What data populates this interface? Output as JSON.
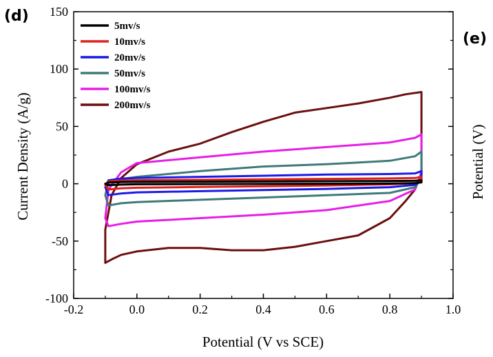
{
  "chart_data": [
    {
      "panel_label": "(d)",
      "type": "line",
      "xlabel": "Potential (V vs SCE)",
      "ylabel": "Current Density (A/g)",
      "xlim": [
        -0.2,
        1.0
      ],
      "ylim": [
        -100,
        150
      ],
      "xticks": [
        "-0.2",
        "0.0",
        "0.2",
        "0.4",
        "0.6",
        "0.8",
        "1.0"
      ],
      "yticks": [
        "-100",
        "-50",
        "0",
        "50",
        "100",
        "150"
      ],
      "grid": false,
      "legend_position": "top-left",
      "series": [
        {
          "name": "5mv/s",
          "color": "#000000",
          "x": [
            -0.1,
            -0.09,
            -0.05,
            0.0,
            0.2,
            0.4,
            0.6,
            0.8,
            0.88,
            0.9,
            0.9,
            0.88,
            0.8,
            0.6,
            0.4,
            0.2,
            0.0,
            -0.05,
            -0.09,
            -0.1
          ],
          "y": [
            0,
            1.0,
            1.5,
            1.6,
            1.8,
            2.0,
            2.2,
            2.4,
            2.6,
            3.0,
            1.2,
            0.5,
            0.2,
            0.0,
            -0.2,
            -0.3,
            -0.5,
            -0.8,
            -1.2,
            0
          ]
        },
        {
          "name": "10mv/s",
          "color": "#e0201b",
          "x": [
            -0.1,
            -0.09,
            -0.05,
            0.0,
            0.2,
            0.4,
            0.6,
            0.8,
            0.88,
            0.9,
            0.9,
            0.88,
            0.8,
            0.6,
            0.4,
            0.2,
            0.0,
            -0.05,
            -0.09,
            -0.1
          ],
          "y": [
            -1,
            2.0,
            2.8,
            3.0,
            3.4,
            3.8,
            4.2,
            4.6,
            5.0,
            6.0,
            2.0,
            0.5,
            -0.5,
            -1.5,
            -2.2,
            -2.8,
            -3.5,
            -4.0,
            -5.0,
            -1
          ]
        },
        {
          "name": "20mv/s",
          "color": "#1a1ae6",
          "x": [
            -0.1,
            -0.09,
            -0.05,
            0.0,
            0.2,
            0.4,
            0.6,
            0.8,
            0.88,
            0.9,
            0.9,
            0.88,
            0.8,
            0.6,
            0.4,
            0.2,
            0.0,
            -0.05,
            -0.09,
            -0.1
          ],
          "y": [
            -3,
            3.0,
            4.5,
            5.0,
            6.0,
            7.0,
            8.0,
            8.5,
            9.0,
            11,
            3.0,
            -1.0,
            -3.0,
            -4.5,
            -5.5,
            -6.5,
            -7.5,
            -8.5,
            -10,
            -3
          ]
        },
        {
          "name": "50mv/s",
          "color": "#3e7a78",
          "x": [
            -0.1,
            -0.09,
            -0.05,
            0.0,
            0.2,
            0.4,
            0.6,
            0.8,
            0.88,
            0.9,
            0.9,
            0.88,
            0.8,
            0.6,
            0.4,
            0.2,
            0.0,
            -0.05,
            -0.09,
            -0.1
          ],
          "y": [
            -10,
            1.0,
            4.0,
            6.0,
            11,
            15,
            17,
            20,
            24,
            28,
            5.0,
            -3.0,
            -8.0,
            -10,
            -12,
            -14,
            -16,
            -17,
            -19,
            -10
          ]
        },
        {
          "name": "100mv/s",
          "color": "#e61ee6",
          "x": [
            -0.1,
            -0.09,
            -0.05,
            0.0,
            0.2,
            0.4,
            0.6,
            0.8,
            0.88,
            0.9,
            0.9,
            0.88,
            0.8,
            0.6,
            0.4,
            0.2,
            0.0,
            -0.05,
            -0.09,
            -0.1
          ],
          "y": [
            -30,
            -5.0,
            10,
            18,
            23,
            28,
            32,
            36,
            40,
            43,
            10,
            -5.0,
            -15,
            -23,
            -27,
            -30,
            -33,
            -35,
            -37,
            -30
          ]
        },
        {
          "name": "200mv/s",
          "color": "#6b0f0f",
          "x": [
            -0.1,
            -0.1,
            -0.08,
            -0.05,
            0.0,
            0.1,
            0.2,
            0.3,
            0.4,
            0.5,
            0.6,
            0.7,
            0.8,
            0.85,
            0.9,
            0.9,
            0.88,
            0.85,
            0.8,
            0.7,
            0.6,
            0.5,
            0.4,
            0.3,
            0.2,
            0.1,
            0.0,
            -0.05,
            -0.08,
            -0.1
          ],
          "y": [
            -69,
            -40,
            -10,
            5,
            17,
            28,
            35,
            45,
            54,
            62,
            66,
            70,
            75,
            78,
            80,
            10,
            -5,
            -15,
            -30,
            -45,
            -50,
            -55,
            -58,
            -58,
            -56,
            -56,
            -59,
            -62,
            -66,
            -69
          ]
        }
      ]
    },
    {
      "panel_label": "(e)",
      "type": "line",
      "ylabel": "Potential (V)"
    }
  ]
}
